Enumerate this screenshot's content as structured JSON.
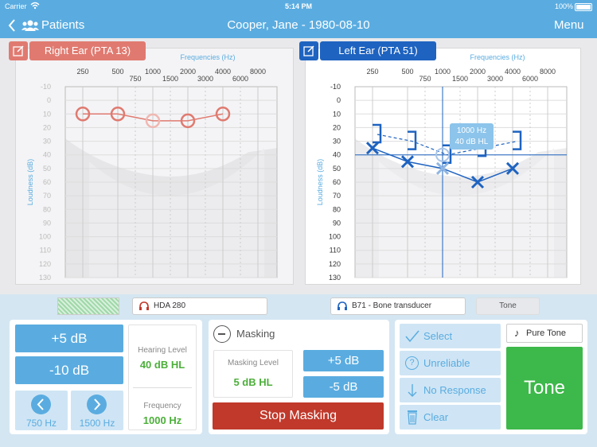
{
  "status": {
    "carrier": "Carrier",
    "time": "5:14 PM",
    "battery": "100%"
  },
  "nav": {
    "back_label": "Patients",
    "title": "Cooper, Jane - 1980-08-10",
    "menu_label": "Menu"
  },
  "right_ear": {
    "label": "Right Ear (PTA 13)",
    "color": "#e07a70",
    "freq_title": "Frequencies (Hz)",
    "y_title": "Loudness (dB)",
    "top_freqs": [
      "250",
      "500",
      "1000",
      "2000",
      "4000",
      "8000"
    ],
    "bottom_freqs": [
      "750",
      "1500",
      "3000",
      "6000"
    ],
    "db_labels": [
      "-10",
      "0",
      "10",
      "20",
      "30",
      "40",
      "50",
      "60",
      "70",
      "80",
      "90",
      "100",
      "110",
      "120",
      "130"
    ],
    "thresholds_db": [
      10,
      10,
      15,
      15,
      10
    ]
  },
  "left_ear": {
    "label": "Left Ear (PTA 51)",
    "color": "#1e63c0",
    "freq_title": "Frequencies (Hz)",
    "y_title": "Loudness (dB)",
    "top_freqs": [
      "250",
      "500",
      "1000",
      "2000",
      "4000",
      "8000"
    ],
    "bottom_freqs": [
      "750",
      "1500",
      "3000",
      "6000"
    ],
    "db_labels": [
      "-10",
      "0",
      "10",
      "20",
      "30",
      "40",
      "50",
      "60",
      "70",
      "80",
      "90",
      "100",
      "110",
      "120",
      "130"
    ],
    "thresholds_db": [
      35,
      45,
      50,
      60,
      50
    ],
    "tooltip_freq": "1000 Hz",
    "tooltip_level": "40 dB HL"
  },
  "transducers": {
    "right": "HDA 280",
    "left": "B71 - Bone transducer",
    "tone_tab": "Tone"
  },
  "level_panel": {
    "plus5": "+5 dB",
    "minus10": "-10 dB",
    "hearing_level_label": "Hearing Level",
    "hearing_level_value": "40 dB HL",
    "frequency_label": "Frequency",
    "frequency_value": "1000 Hz",
    "prev_freq": "750 Hz",
    "next_freq": "1500 Hz"
  },
  "masking_panel": {
    "title": "Masking",
    "level_label": "Masking Level",
    "level_value": "5 dB HL",
    "plus5": "+5 dB",
    "minus5": "-5 dB",
    "stop": "Stop Masking"
  },
  "response_panel": {
    "select": "Select",
    "unreliable": "Unreliable",
    "no_response": "No Response",
    "clear": "Clear",
    "pure_tone": "Pure Tone",
    "tone": "Tone"
  }
}
